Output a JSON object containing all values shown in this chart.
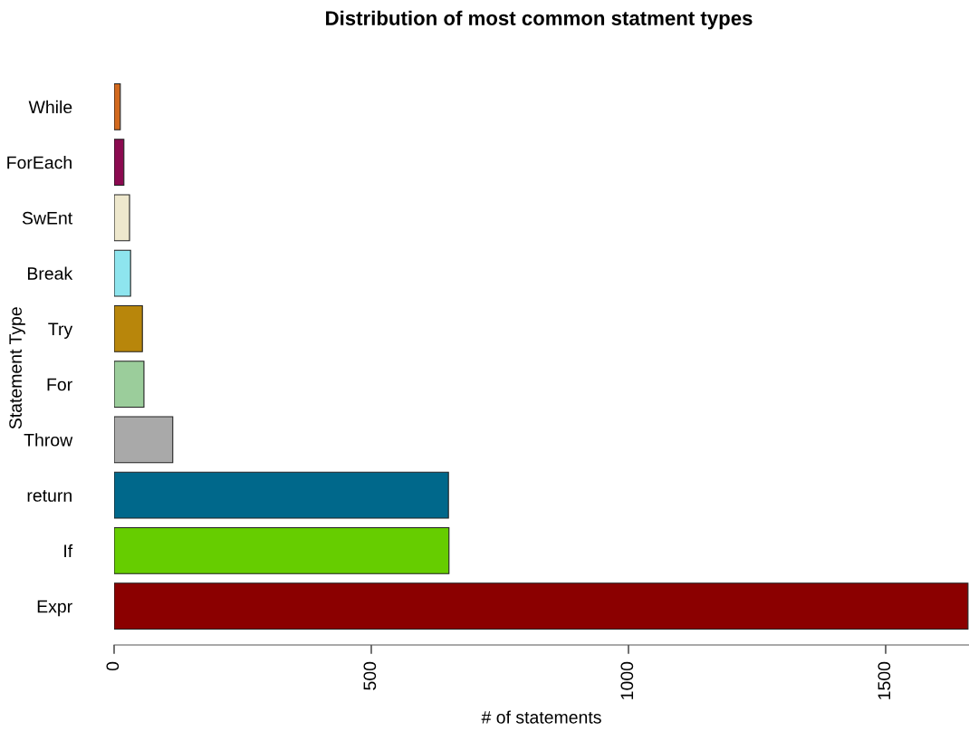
{
  "chart_data": {
    "type": "bar",
    "orientation": "horizontal",
    "title": "Distribution of most common statment types",
    "xlabel": "# of statements",
    "ylabel": "Statement Type",
    "categories": [
      "While",
      "ForEach",
      "SwEnt",
      "Break",
      "Try",
      "For",
      "Throw",
      "return",
      "If",
      "Expr"
    ],
    "values": [
      12,
      19,
      30,
      32,
      55,
      58,
      114,
      650,
      651,
      1660
    ],
    "colors": [
      "#d2691e",
      "#8b0a50",
      "#eee8cd",
      "#8ee5ee",
      "#b8860b",
      "#9bcd9b",
      "#a9a9a9",
      "#00688b",
      "#66cd00",
      "#8b0000"
    ],
    "xlim": [
      0,
      1662
    ],
    "xticks": [
      0,
      500,
      1000,
      1500
    ],
    "grid": false,
    "legend": false
  }
}
